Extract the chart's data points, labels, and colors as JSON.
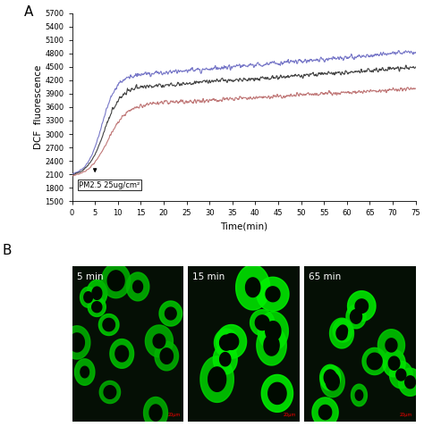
{
  "panel_A": {
    "xlabel": "Time(min)",
    "ylabel": "DCF  fluorescence",
    "xlim": [
      0,
      75
    ],
    "ylim": [
      1500,
      5700
    ],
    "yticks": [
      1500,
      1800,
      2100,
      2400,
      2700,
      3000,
      3300,
      3600,
      3900,
      4200,
      4500,
      4800,
      5100,
      5400,
      5700
    ],
    "xticks": [
      0,
      5,
      10,
      15,
      20,
      25,
      30,
      35,
      40,
      45,
      50,
      55,
      60,
      65,
      70,
      75
    ],
    "annotation_text": "PM2.5 25ug/cm²",
    "line_colors": [
      "#7878c8",
      "#444444",
      "#c07878"
    ],
    "line_width": 0.8,
    "seed": 42
  },
  "panel_B": {
    "labels": [
      "5 min",
      "15 min",
      "65 min"
    ],
    "bg_color": "#050f05"
  },
  "label_A": "A",
  "label_B": "B",
  "fig_bg": "#ffffff"
}
